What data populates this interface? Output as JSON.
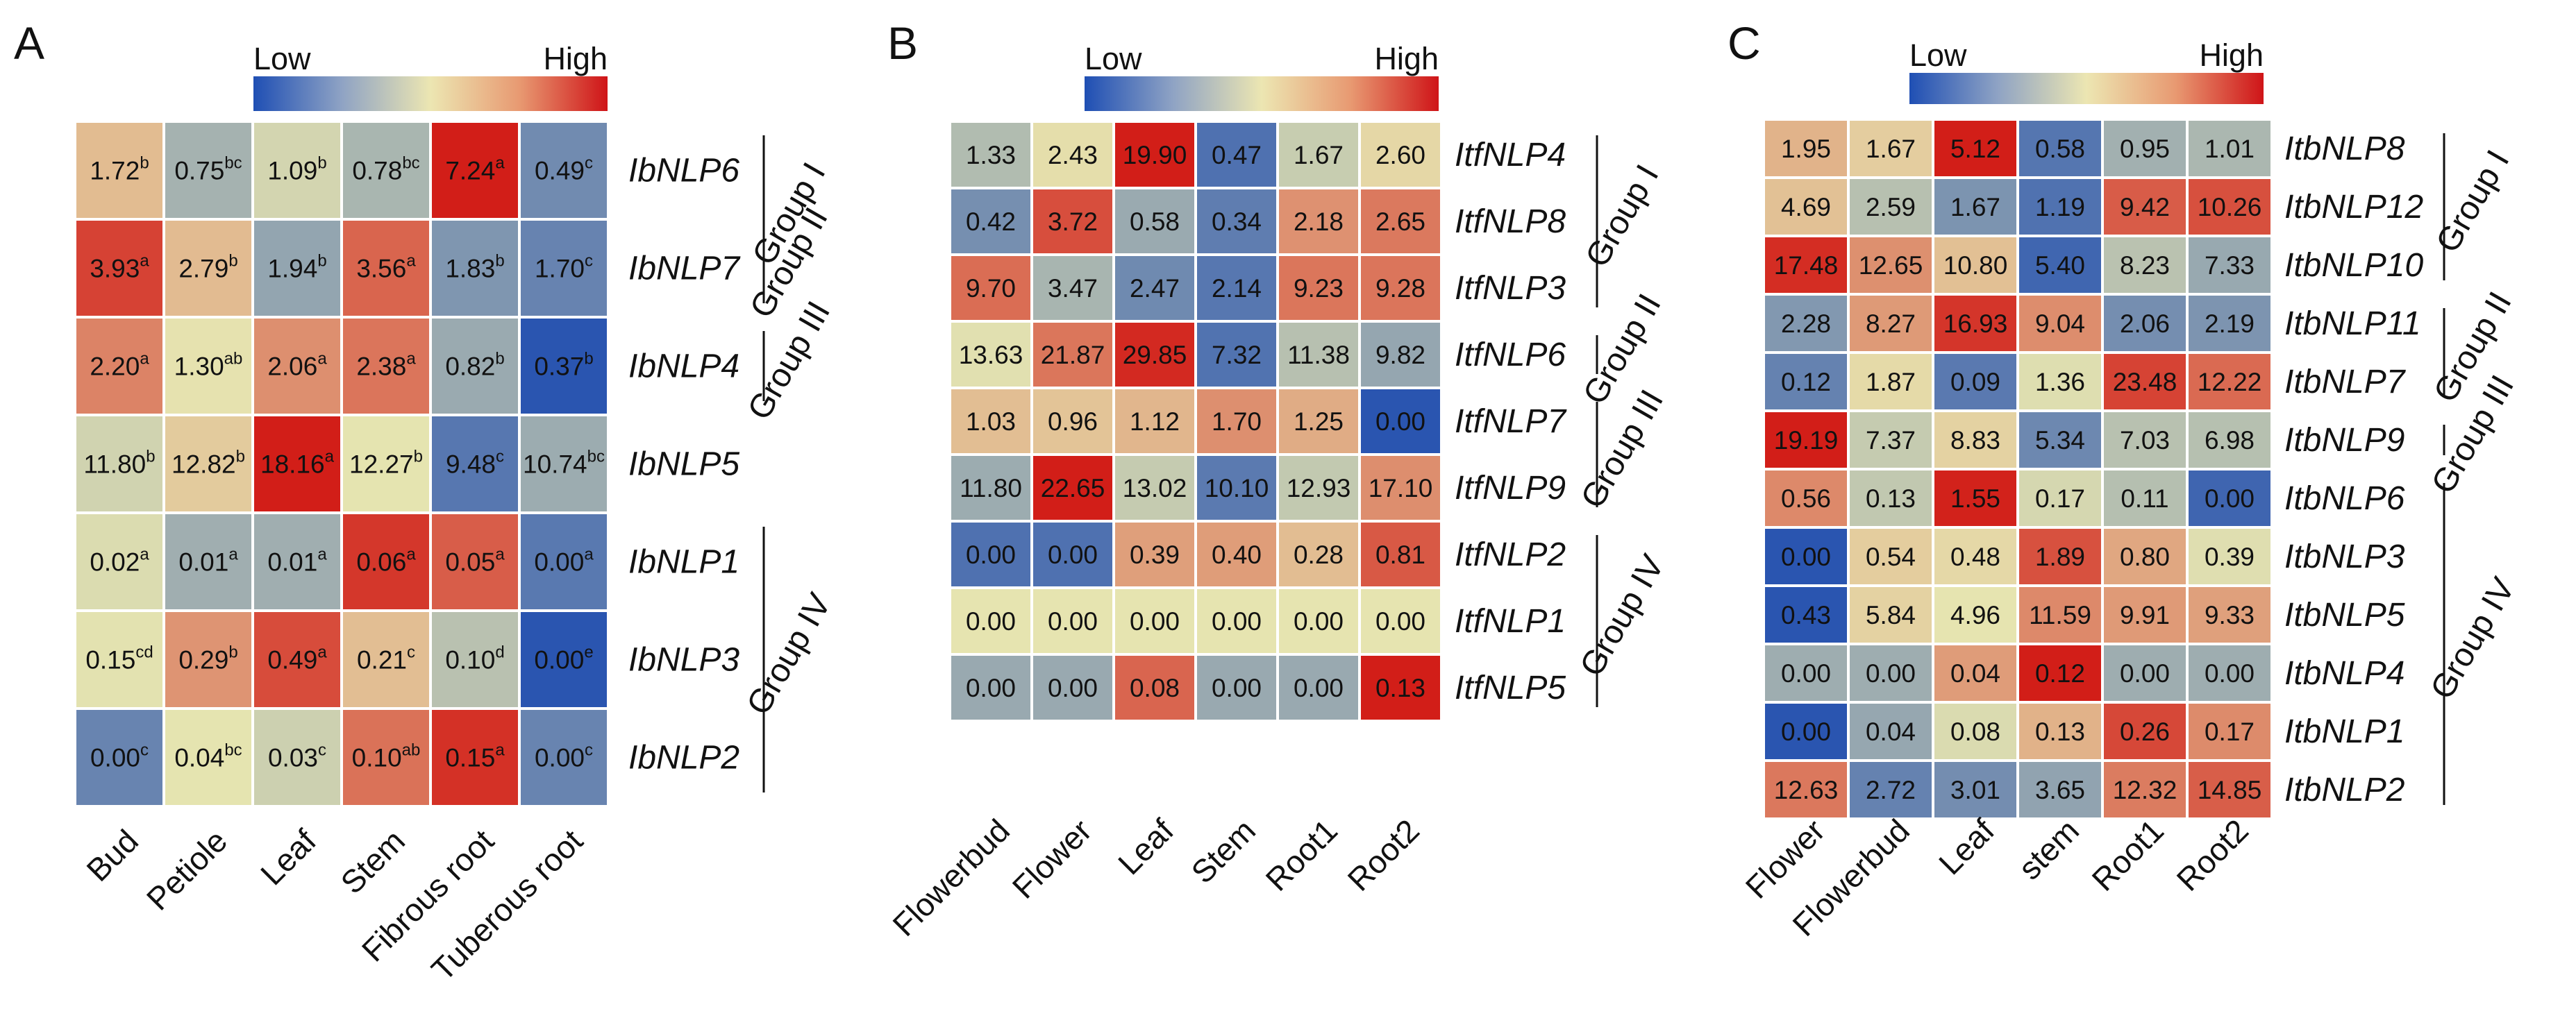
{
  "colors": {
    "low": "#2a55b0",
    "mid": "#e6e4b0",
    "high": "#d21e18"
  },
  "chart_data": [
    {
      "panel": "A",
      "type": "heatmap",
      "legend": {
        "low": "Low",
        "high": "High"
      },
      "columns": [
        "Bud",
        "Petiole",
        "Leaf",
        "Stem",
        "Fibrous root",
        "Tuberous root"
      ],
      "rows": [
        {
          "gene": "IbNLP6",
          "values": [
            "1.72",
            "0.75",
            "1.09",
            "0.78",
            "7.24",
            "0.49"
          ],
          "sup": [
            "b",
            "bc",
            "b",
            "bc",
            "a",
            "c"
          ]
        },
        {
          "gene": "IbNLP7",
          "values": [
            "3.93",
            "2.79",
            "1.94",
            "3.56",
            "1.83",
            "1.70"
          ],
          "sup": [
            "a",
            "b",
            "b",
            "a",
            "b",
            "c"
          ]
        },
        {
          "gene": "IbNLP4",
          "values": [
            "2.20",
            "1.30",
            "2.06",
            "2.38",
            "0.82",
            "0.37"
          ],
          "sup": [
            "a",
            "ab",
            "a",
            "a",
            "b",
            "b"
          ]
        },
        {
          "gene": "IbNLP5",
          "values": [
            "11.80",
            "12.82",
            "18.16",
            "12.27",
            "9.48",
            "10.74"
          ],
          "sup": [
            "b",
            "b",
            "a",
            "b",
            "c",
            "bc"
          ]
        },
        {
          "gene": "IbNLP1",
          "values": [
            "0.02",
            "0.01",
            "0.01",
            "0.06",
            "0.05",
            "0.00"
          ],
          "sup": [
            "a",
            "a",
            "a",
            "a",
            "a",
            "a"
          ]
        },
        {
          "gene": "IbNLP3",
          "values": [
            "0.15",
            "0.29",
            "0.49",
            "0.21",
            "0.10",
            "0.00"
          ],
          "sup": [
            "cd",
            "b",
            "a",
            "c",
            "d",
            "e"
          ]
        },
        {
          "gene": "IbNLP2",
          "values": [
            "0.00",
            "0.04",
            "0.03",
            "0.10",
            "0.15",
            "0.00"
          ],
          "sup": [
            "c",
            "bc",
            "c",
            "ab",
            "a",
            "c"
          ]
        }
      ],
      "groups": [
        {
          "label": "Group I",
          "rows": [
            0,
            1
          ]
        },
        {
          "label": "Group II",
          "rows": [
            1,
            1
          ]
        },
        {
          "label": "Group III",
          "rows": [
            2,
            2
          ]
        },
        {
          "label": "Group IV",
          "rows": [
            4,
            6
          ]
        }
      ]
    },
    {
      "panel": "B",
      "type": "heatmap",
      "legend": {
        "low": "Low",
        "high": "High"
      },
      "columns": [
        "Flowerbud",
        "Flower",
        "Leaf",
        "Stem",
        "Root1",
        "Root2"
      ],
      "rows": [
        {
          "gene": "ItfNLP4",
          "values": [
            "1.33",
            "2.43",
            "19.90",
            "0.47",
            "1.67",
            "2.60"
          ]
        },
        {
          "gene": "ItfNLP8",
          "values": [
            "0.42",
            "3.72",
            "0.58",
            "0.34",
            "2.18",
            "2.65"
          ]
        },
        {
          "gene": "ItfNLP3",
          "values": [
            "9.70",
            "3.47",
            "2.47",
            "2.14",
            "9.23",
            "9.28"
          ]
        },
        {
          "gene": "ItfNLP6",
          "values": [
            "13.63",
            "21.87",
            "29.85",
            "7.32",
            "11.38",
            "9.82"
          ]
        },
        {
          "gene": "ItfNLP7",
          "values": [
            "1.03",
            "0.96",
            "1.12",
            "1.70",
            "1.25",
            "0.00"
          ]
        },
        {
          "gene": "ItfNLP9",
          "values": [
            "11.80",
            "22.65",
            "13.02",
            "10.10",
            "12.93",
            "17.10"
          ]
        },
        {
          "gene": "ItfNLP2",
          "values": [
            "0.00",
            "0.00",
            "0.39",
            "0.40",
            "0.28",
            "0.81"
          ]
        },
        {
          "gene": "ItfNLP1",
          "values": [
            "0.00",
            "0.00",
            "0.00",
            "0.00",
            "0.00",
            "0.00"
          ]
        },
        {
          "gene": "ItfNLP5",
          "values": [
            "0.00",
            "0.00",
            "0.08",
            "0.00",
            "0.00",
            "0.13"
          ]
        }
      ],
      "groups": [
        {
          "label": "Group I",
          "rows": [
            0,
            2
          ]
        },
        {
          "label": "Group II",
          "rows": [
            3,
            3
          ]
        },
        {
          "label": "Group III",
          "rows": [
            4,
            5
          ]
        },
        {
          "label": "Group IV",
          "rows": [
            6,
            8
          ]
        }
      ]
    },
    {
      "panel": "C",
      "type": "heatmap",
      "legend": {
        "low": "Low",
        "high": "High"
      },
      "columns": [
        "Flower",
        "Flowerbud",
        "Leaf",
        "stem",
        "Root1",
        "Root2"
      ],
      "rows": [
        {
          "gene": "ItbNLP8",
          "values": [
            "1.95",
            "1.67",
            "5.12",
            "0.58",
            "0.95",
            "1.01"
          ]
        },
        {
          "gene": "ItbNLP12",
          "values": [
            "4.69",
            "2.59",
            "1.67",
            "1.19",
            "9.42",
            "10.26"
          ]
        },
        {
          "gene": "ItbNLP10",
          "values": [
            "17.48",
            "12.65",
            "10.80",
            "5.40",
            "8.23",
            "7.33"
          ]
        },
        {
          "gene": "ItbNLP11",
          "values": [
            "2.28",
            "8.27",
            "16.93",
            "9.04",
            "2.06",
            "2.19"
          ]
        },
        {
          "gene": "ItbNLP7",
          "values": [
            "0.12",
            "1.87",
            "0.09",
            "1.36",
            "23.48",
            "12.22"
          ]
        },
        {
          "gene": "ItbNLP9",
          "values": [
            "19.19",
            "7.37",
            "8.83",
            "5.34",
            "7.03",
            "6.98"
          ]
        },
        {
          "gene": "ItbNLP6",
          "values": [
            "0.56",
            "0.13",
            "1.55",
            "0.17",
            "0.11",
            "0.00"
          ]
        },
        {
          "gene": "ItbNLP3",
          "values": [
            "0.00",
            "0.54",
            "0.48",
            "1.89",
            "0.80",
            "0.39"
          ]
        },
        {
          "gene": "ItbNLP5",
          "values": [
            "0.43",
            "5.84",
            "4.96",
            "11.59",
            "9.91",
            "9.33"
          ]
        },
        {
          "gene": "ItbNLP4",
          "values": [
            "0.00",
            "0.00",
            "0.04",
            "0.12",
            "0.00",
            "0.00"
          ]
        },
        {
          "gene": "ItbNLP1",
          "values": [
            "0.00",
            "0.04",
            "0.08",
            "0.13",
            "0.26",
            "0.17"
          ]
        },
        {
          "gene": "ItbNLP2",
          "values": [
            "12.63",
            "2.72",
            "3.01",
            "3.65",
            "12.32",
            "14.85"
          ]
        }
      ],
      "groups": [
        {
          "label": "Group I",
          "rows": [
            0,
            2
          ]
        },
        {
          "label": "Group II",
          "rows": [
            3,
            4
          ]
        },
        {
          "label": "Group III",
          "rows": [
            5,
            5
          ]
        },
        {
          "label": "Group IV",
          "rows": [
            6,
            11
          ]
        }
      ]
    }
  ]
}
